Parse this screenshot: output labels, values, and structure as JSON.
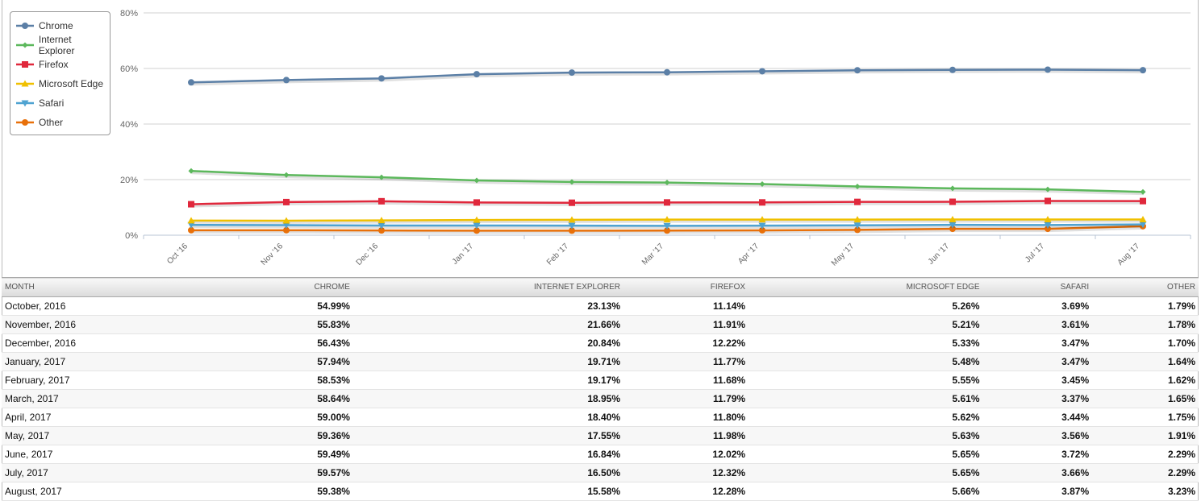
{
  "chart_data": {
    "type": "line",
    "title": "",
    "xlabel": "",
    "ylabel": "",
    "ylim": [
      0,
      80
    ],
    "yticks": [
      "0%",
      "20%",
      "40%",
      "60%",
      "80%"
    ],
    "ytick_values": [
      0,
      20,
      40,
      60,
      80
    ],
    "grid": true,
    "legend_position": "top-left",
    "categories": [
      "Oct '16",
      "Nov '16",
      "Dec '16",
      "Jan '17",
      "Feb '17",
      "Mar '17",
      "Apr '17",
      "May '17",
      "Jun '17",
      "Jul '17",
      "Aug '17"
    ],
    "series": [
      {
        "name": "Chrome",
        "color": "#5b7fa6",
        "marker": "circle",
        "values": [
          54.99,
          55.83,
          56.43,
          57.94,
          58.53,
          58.64,
          59.0,
          59.36,
          59.49,
          59.57,
          59.38
        ]
      },
      {
        "name": "Internet Explorer",
        "color": "#5cb85c",
        "marker": "diamond",
        "values": [
          23.13,
          21.66,
          20.84,
          19.71,
          19.17,
          18.95,
          18.4,
          17.55,
          16.84,
          16.5,
          15.58
        ]
      },
      {
        "name": "Firefox",
        "color": "#e0283c",
        "marker": "square",
        "values": [
          11.14,
          11.91,
          12.22,
          11.77,
          11.68,
          11.79,
          11.8,
          11.98,
          12.02,
          12.32,
          12.28
        ]
      },
      {
        "name": "Microsoft Edge",
        "color": "#f0c000",
        "marker": "triangle",
        "values": [
          5.26,
          5.21,
          5.33,
          5.48,
          5.55,
          5.61,
          5.62,
          5.63,
          5.65,
          5.65,
          5.66
        ]
      },
      {
        "name": "Safari",
        "color": "#4fa3d1",
        "marker": "triangle-down",
        "values": [
          3.69,
          3.61,
          3.47,
          3.47,
          3.45,
          3.37,
          3.44,
          3.56,
          3.72,
          3.66,
          3.87
        ]
      },
      {
        "name": "Other",
        "color": "#e8700a",
        "marker": "circle",
        "values": [
          1.79,
          1.78,
          1.7,
          1.64,
          1.62,
          1.65,
          1.75,
          1.91,
          2.29,
          2.29,
          3.23
        ]
      }
    ]
  },
  "table": {
    "headers": [
      "MONTH",
      "CHROME",
      "INTERNET EXPLORER",
      "FIREFOX",
      "MICROSOFT EDGE",
      "SAFARI",
      "OTHER"
    ],
    "rows": [
      [
        "October, 2016",
        "54.99%",
        "23.13%",
        "11.14%",
        "5.26%",
        "3.69%",
        "1.79%"
      ],
      [
        "November, 2016",
        "55.83%",
        "21.66%",
        "11.91%",
        "5.21%",
        "3.61%",
        "1.78%"
      ],
      [
        "December, 2016",
        "56.43%",
        "20.84%",
        "12.22%",
        "5.33%",
        "3.47%",
        "1.70%"
      ],
      [
        "January, 2017",
        "57.94%",
        "19.71%",
        "11.77%",
        "5.48%",
        "3.47%",
        "1.64%"
      ],
      [
        "February, 2017",
        "58.53%",
        "19.17%",
        "11.68%",
        "5.55%",
        "3.45%",
        "1.62%"
      ],
      [
        "March, 2017",
        "58.64%",
        "18.95%",
        "11.79%",
        "5.61%",
        "3.37%",
        "1.65%"
      ],
      [
        "April, 2017",
        "59.00%",
        "18.40%",
        "11.80%",
        "5.62%",
        "3.44%",
        "1.75%"
      ],
      [
        "May, 2017",
        "59.36%",
        "17.55%",
        "11.98%",
        "5.63%",
        "3.56%",
        "1.91%"
      ],
      [
        "June, 2017",
        "59.49%",
        "16.84%",
        "12.02%",
        "5.65%",
        "3.72%",
        "2.29%"
      ],
      [
        "July, 2017",
        "59.57%",
        "16.50%",
        "12.32%",
        "5.65%",
        "3.66%",
        "2.29%"
      ],
      [
        "August, 2017",
        "59.38%",
        "15.58%",
        "12.28%",
        "5.66%",
        "3.87%",
        "3.23%"
      ]
    ]
  }
}
